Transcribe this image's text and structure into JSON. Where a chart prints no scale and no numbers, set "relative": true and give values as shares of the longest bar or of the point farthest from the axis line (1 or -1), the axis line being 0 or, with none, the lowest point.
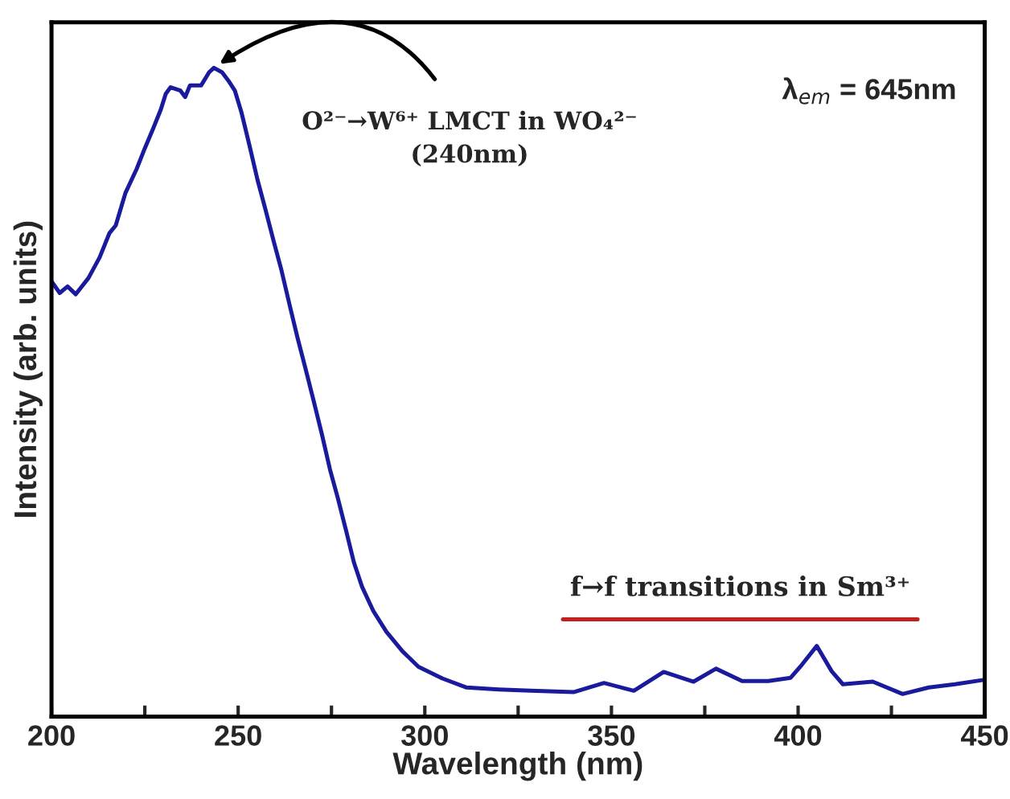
{
  "chart_data": {
    "type": "line",
    "xlabel": "Wavelength (nm)",
    "ylabel": "Intensity (arb. units)",
    "relative": true,
    "xlim": [
      200,
      450
    ],
    "xticks": [
      200,
      {
        "value": 225,
        "label": null
      },
      250,
      {
        "value": 275,
        "label": null
      },
      300,
      {
        "value": 325,
        "label": null
      },
      350,
      {
        "value": 375,
        "label": null
      },
      400,
      {
        "value": 425,
        "label": null
      },
      450
    ],
    "grid": false,
    "legend": false,
    "marker": "none",
    "line_style": "solid",
    "series": [
      {
        "color": "#1a1a9c",
        "x": [
          200,
          202.2,
          204.3,
          206.5,
          209.9,
          212.9,
          215.5,
          217.2,
          219.8,
          222.8,
          225,
          227.2,
          229.3,
          230.6,
          231.9,
          234.5,
          235.8,
          237.1,
          240.1,
          242.2,
          243.5,
          245.7,
          247.4,
          249.1,
          250.9,
          253,
          255.2,
          257.3,
          259.5,
          261.6,
          263.8,
          265.9,
          268.1,
          270.3,
          272.4,
          274.6,
          276.7,
          278.9,
          281,
          283.2,
          286.2,
          289.7,
          294,
          298.3,
          304.7,
          311.2,
          319.8,
          328.4,
          340,
          348,
          356,
          364,
          372,
          378,
          385,
          392,
          398,
          401,
          405,
          409,
          412,
          420,
          428,
          435,
          442,
          450
        ],
        "values": [
          0.671,
          0.653,
          0.663,
          0.651,
          0.676,
          0.708,
          0.745,
          0.757,
          0.807,
          0.844,
          0.876,
          0.906,
          0.936,
          0.96,
          0.97,
          0.965,
          0.955,
          0.973,
          0.973,
          0.993,
          1.0,
          0.993,
          0.98,
          0.965,
          0.931,
          0.881,
          0.827,
          0.782,
          0.733,
          0.688,
          0.634,
          0.584,
          0.535,
          0.485,
          0.436,
          0.381,
          0.337,
          0.287,
          0.238,
          0.2,
          0.163,
          0.131,
          0.101,
          0.077,
          0.059,
          0.045,
          0.042,
          0.04,
          0.038,
          0.052,
          0.04,
          0.069,
          0.054,
          0.074,
          0.055,
          0.055,
          0.06,
          0.08,
          0.109,
          0.07,
          0.05,
          0.054,
          0.035,
          0.045,
          0.05,
          0.057
        ]
      },
      {
        "color": "#c0211f",
        "x": [
          337,
          432
        ],
        "values": [
          0.15,
          0.15
        ]
      }
    ],
    "annotations": [
      {
        "text": "O²⁻→W⁶⁺ LMCT in WO₄²⁻\n(240nm)",
        "x": 243.5,
        "y": 1.0
      },
      "λ$_{em}$ = 645nm",
      {
        "text": "f→f transitions in Sm³⁺",
        "x": 384.5,
        "y": 0.15
      }
    ]
  }
}
